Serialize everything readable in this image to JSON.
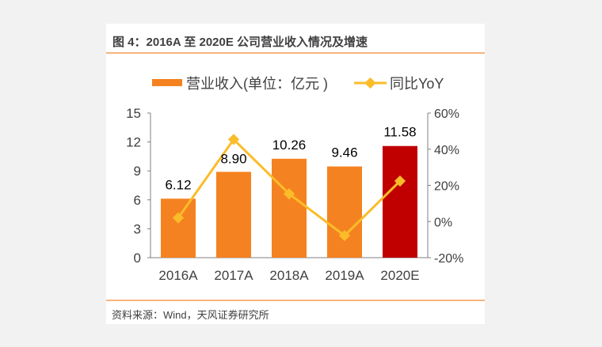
{
  "title": "图 4：2016A 至 2020E 公司营业收入情况及增速",
  "source": "资料来源：Wind，天风证券研究所",
  "chart_data": {
    "type": "bar",
    "categories": [
      "2016A",
      "2017A",
      "2018A",
      "2019A",
      "2020E"
    ],
    "series": [
      {
        "name": "营业收入(单位：亿元 )",
        "type": "bar",
        "axis": "left",
        "values": [
          6.12,
          8.9,
          10.26,
          9.46,
          11.58
        ],
        "labels": [
          "6.12",
          "8.90",
          "10.26",
          "9.46",
          "11.58"
        ],
        "colors": [
          "#f58220",
          "#f58220",
          "#f58220",
          "#f58220",
          "#c00000"
        ]
      },
      {
        "name": "同比YoY",
        "type": "line",
        "axis": "right",
        "values": [
          2,
          45.4,
          15.3,
          -7.8,
          22.4
        ],
        "color": "#fbbc2a"
      }
    ],
    "left_axis": {
      "range": [
        0,
        15
      ],
      "ticks": [
        "0",
        "3",
        "6",
        "9",
        "12",
        "15"
      ]
    },
    "right_axis": {
      "range": [
        -20,
        60
      ],
      "ticks": [
        "-20%",
        "0%",
        "20%",
        "40%",
        "60%"
      ]
    },
    "legend_position": "top",
    "grid": false
  }
}
